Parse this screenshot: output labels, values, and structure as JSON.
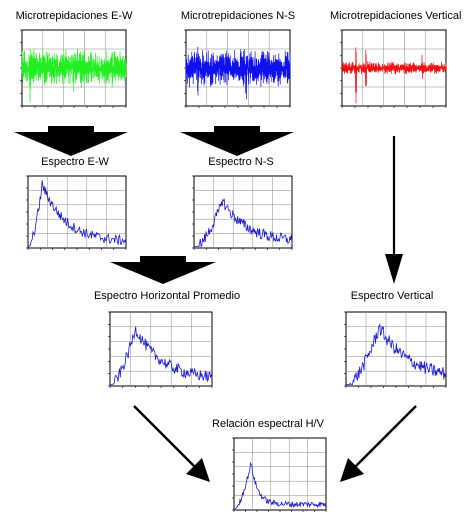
{
  "titles": {
    "ew_signal": "Microtrepidaciones E-W",
    "ns_signal": "Microtrepidaciones N-S",
    "v_signal": "Microtrepidaciones Vertical",
    "ew_spectrum": "Espectro E-W",
    "ns_spectrum": "Espectro N-S",
    "h_avg_spectrum": "Espectro Horizontal Promedio",
    "v_spectrum": "Espectro Vertical",
    "hv_ratio": "Relación espectral H/V"
  },
  "colors": {
    "ew_trace": "#22ee22",
    "ns_trace": "#1010ee",
    "v_trace": "#ee1111",
    "spectrum_trace": "#1a1acc",
    "frame": "#000000",
    "grid": "#888888",
    "arrow": "#000000"
  },
  "icons": {
    "down_arrow": "down-arrow-icon",
    "diagonal_arrow": "diagonal-arrow-icon"
  }
}
